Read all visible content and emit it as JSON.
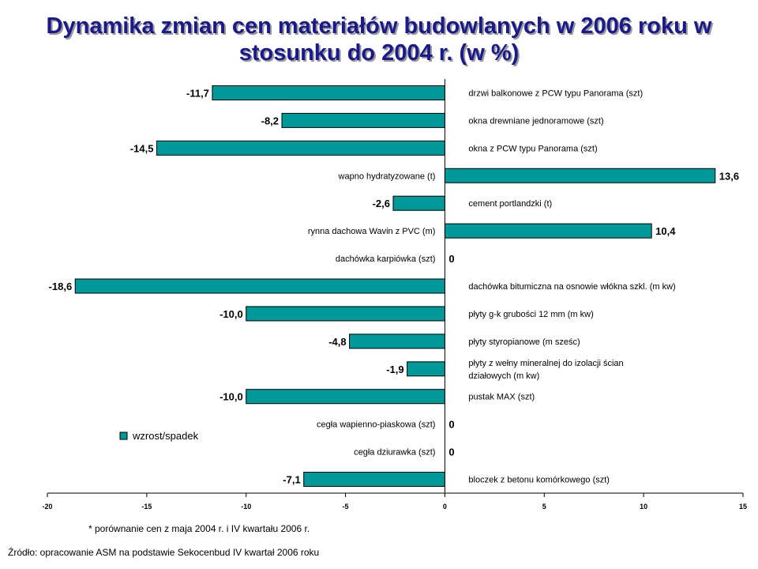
{
  "title_line1": "Dynamika zmian cen materiałów budowlanych w 2006 roku w",
  "title_line2": "stosunku do 2004 r. (w %)",
  "note": "* porównanie cen z maja 2004 r. i IV kwartału 2006 r.",
  "source": "Źródło: opracowanie ASM  na podstawie Sekocenbud IV kwartał 2006 roku",
  "colors": {
    "bar": "#009999",
    "bar_stroke": "#000000"
  },
  "chart_data": {
    "type": "bar",
    "orientation": "horizontal",
    "xlim": [
      -20,
      15
    ],
    "xticks": [
      -20,
      -15,
      -10,
      -5,
      0,
      5,
      10,
      15
    ],
    "legend": {
      "position": "left",
      "label": "wzrost/spadek"
    },
    "categories": [
      "drzwi balkonowe z PCW typu Panorama (szt)",
      "okna drewniane jednoramowe (szt)",
      "okna z PCW typu Panorama (szt)",
      "wapno hydratyzowane (t)",
      "cement portlandzki (t)",
      "rynna dachowa Wavin z PVC (m)",
      "dachówka karpiówka (szt)",
      "dachówka bitumiczna na osnowie włókna szkl. (m  kw)",
      "płyty g-k grubości 12 mm  (m kw)",
      "płyty styropianowe (m sześc)",
      "płyty z wełny mineralnej do izolacji ścian działowych (m kw)",
      "pustak MAX (szt)",
      "cegła wapienno-piaskowa (szt)",
      "cegła dziurawka (szt)",
      "bloczek z betonu komórkowego (szt)"
    ],
    "category_lines": [
      [
        "drzwi balkonowe z PCW typu Panorama (szt)"
      ],
      [
        "okna drewniane jednoramowe (szt)"
      ],
      [
        "okna z PCW typu Panorama (szt)"
      ],
      [
        "wapno hydratyzowane (t)"
      ],
      [
        "cement portlandzki (t)"
      ],
      [
        "rynna dachowa Wavin z PVC (m)"
      ],
      [
        "dachówka karpiówka (szt)"
      ],
      [
        "dachówka bitumiczna na osnowie włókna szkl. (m  kw)"
      ],
      [
        "płyty g-k grubości 12 mm  (m kw)"
      ],
      [
        "płyty styropianowe (m sześc)"
      ],
      [
        "płyty z wełny mineralnej do izolacji ścian",
        "działowych (m kw)"
      ],
      [
        "pustak MAX (szt)"
      ],
      [
        "cegła wapienno-piaskowa (szt)"
      ],
      [
        "cegła dziurawka (szt)"
      ],
      [
        "bloczek z betonu komórkowego (szt)"
      ]
    ],
    "values": [
      -11.7,
      -8.2,
      -14.5,
      13.6,
      -2.6,
      10.4,
      0,
      -18.6,
      -10.0,
      -4.8,
      -1.9,
      -10.0,
      0,
      0,
      -7.1
    ],
    "value_labels": [
      "-11,7",
      "-8,2",
      "-14,5",
      "13,6",
      "-2,6",
      "10,4",
      "0",
      "-18,6",
      "-10,0",
      "-4,8",
      "-1,9",
      "-10,0",
      "0",
      "0",
      "-7,1"
    ],
    "series": [
      {
        "name": "wzrost/spadek",
        "values": [
          -11.7,
          -8.2,
          -14.5,
          13.6,
          -2.6,
          10.4,
          0,
          -18.6,
          -10.0,
          -4.8,
          -1.9,
          -10.0,
          0,
          0,
          -7.1
        ]
      }
    ]
  }
}
